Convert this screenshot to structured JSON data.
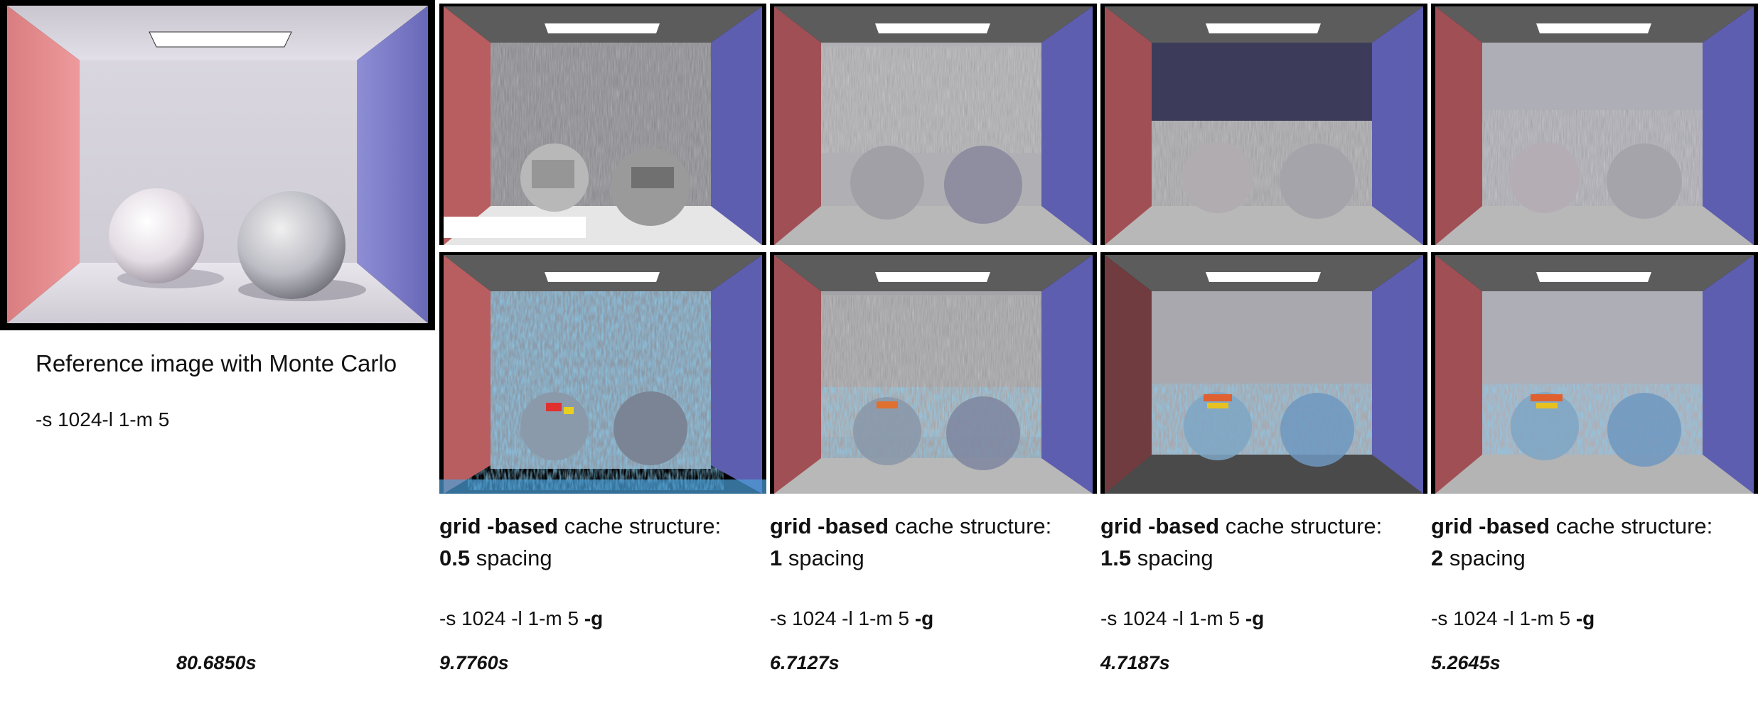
{
  "reference": {
    "title": "Reference image with Monte Carlo",
    "command": "-s 1024-l 1-m 5",
    "time": "80.6850s"
  },
  "columns": [
    {
      "bold_prefix": "grid -based",
      "rest": " cache structure:",
      "spacing_value": "0.5",
      "spacing_label": " spacing",
      "command": "-s 1024 -l 1-m 5 ",
      "flag": "-g",
      "time": "9.7760s"
    },
    {
      "bold_prefix": "grid -based",
      "rest": " cache structure:",
      "spacing_value": "1",
      "spacing_label": " spacing",
      "command": "-s 1024 -l 1-m 5 ",
      "flag": "-g",
      "time": "6.7127s"
    },
    {
      "bold_prefix": "grid -based",
      "rest": " cache structure:",
      "spacing_value": "1.5",
      "spacing_label": " spacing",
      "command": "-s 1024 -l 1-m 5 ",
      "flag": "-g",
      "time": "4.7187s"
    },
    {
      "bold_prefix": "grid -based",
      "rest": " cache structure:",
      "spacing_value": "2",
      "spacing_label": " spacing",
      "command": "-s 1024 -l 1-m 5 ",
      "flag": "-g",
      "time": "5.2645s"
    }
  ],
  "colors": {
    "left_wall": "#c85a5a",
    "right_wall": "#5a5aa8",
    "back_wall": "#9a9aa2",
    "floor": "#b8b8b8",
    "ceiling": "#555555",
    "light": "#ffffff",
    "heatmap_accent": "#4aa0d8"
  }
}
